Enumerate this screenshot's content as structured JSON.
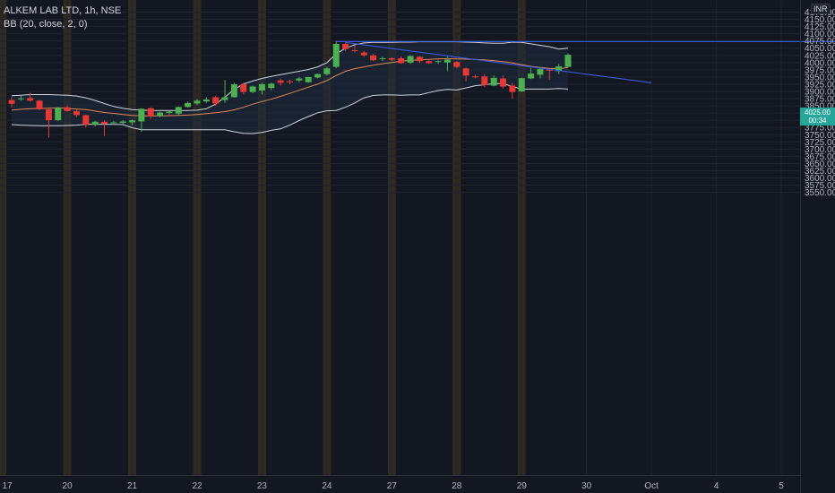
{
  "legend": {
    "symbol_line": "ALKEM LAB LTD, 1h, NSE",
    "indicator_line": "BB (20, close, 2, 0)"
  },
  "currency": "INR",
  "last_price_tag": {
    "price": "4025.00",
    "time": "00:34"
  },
  "colors": {
    "background": "#131722",
    "grid": "#1f2330",
    "up": "#4caf50",
    "down": "#e53935",
    "bb_band": "#cfd3dc",
    "bb_basis": "#e0895a",
    "bb_fill": "#1d2c3e",
    "trendline": "#3d5ad8",
    "session_highlight": "#3a3120",
    "axis_text": "#b2b5be"
  },
  "chart_data": {
    "type": "candlestick",
    "title": "ALKEM LAB LTD, 1h, NSE",
    "ylim": [
      3535,
      4200
    ],
    "y_ticks": [
      3550,
      3575,
      3600,
      3625,
      3650,
      3675,
      3700,
      3725,
      3750,
      3775,
      3800,
      3825,
      3850,
      3875,
      3900,
      3925,
      3950,
      3975,
      4000,
      4025,
      4050,
      4075,
      4100,
      4125,
      4150,
      4175
    ],
    "x_ticks": [
      {
        "label": "17",
        "index": -1
      },
      {
        "label": "20",
        "index": 6
      },
      {
        "label": "21",
        "index": 13
      },
      {
        "label": "22",
        "index": 20
      },
      {
        "label": "23",
        "index": 27
      },
      {
        "label": "24",
        "index": 34
      },
      {
        "label": "27",
        "index": 41
      },
      {
        "label": "28",
        "index": 48
      },
      {
        "label": "29",
        "index": 55
      },
      {
        "label": "30",
        "index": 62
      },
      {
        "label": "Oct",
        "index": 69
      },
      {
        "label": "4",
        "index": 76
      },
      {
        "label": "5",
        "index": 83
      }
    ],
    "candles": [
      [
        3870,
        3880,
        3845,
        3857
      ],
      [
        3873,
        3885,
        3868,
        3876
      ],
      [
        3877,
        3895,
        3865,
        3868
      ],
      [
        3868,
        3870,
        3835,
        3838
      ],
      [
        3838,
        3840,
        3740,
        3800
      ],
      [
        3800,
        3845,
        3798,
        3843
      ],
      [
        3845,
        3852,
        3830,
        3832
      ],
      [
        3832,
        3838,
        3810,
        3818
      ],
      [
        3818,
        3820,
        3775,
        3785
      ],
      [
        3785,
        3798,
        3778,
        3795
      ],
      [
        3795,
        3800,
        3745,
        3788
      ],
      [
        3790,
        3798,
        3785,
        3793
      ],
      [
        3791,
        3800,
        3782,
        3796
      ],
      [
        3793,
        3803,
        3782,
        3800
      ],
      [
        3796,
        3842,
        3760,
        3840
      ],
      [
        3842,
        3845,
        3805,
        3815
      ],
      [
        3815,
        3830,
        3810,
        3827
      ],
      [
        3825,
        3832,
        3820,
        3830
      ],
      [
        3823,
        3848,
        3816,
        3846
      ],
      [
        3846,
        3865,
        3844,
        3860
      ],
      [
        3858,
        3874,
        3852,
        3868
      ],
      [
        3865,
        3880,
        3860,
        3872
      ],
      [
        3880,
        3885,
        3850,
        3858
      ],
      [
        3870,
        3940,
        3860,
        3880
      ],
      [
        3880,
        3930,
        3878,
        3925
      ],
      [
        3925,
        3930,
        3890,
        3898
      ],
      [
        3898,
        3920,
        3894,
        3917
      ],
      [
        3903,
        3930,
        3890,
        3925
      ],
      [
        3912,
        3930,
        3905,
        3927
      ],
      [
        3938,
        3945,
        3920,
        3930
      ],
      [
        3935,
        3940,
        3925,
        3932
      ],
      [
        3938,
        3950,
        3932,
        3945
      ],
      [
        3932,
        3950,
        3930,
        3950
      ],
      [
        3948,
        3962,
        3945,
        3960
      ],
      [
        3960,
        3985,
        3955,
        3980
      ],
      [
        3985,
        4075,
        3980,
        4065
      ],
      [
        4065,
        4070,
        4040,
        4047
      ],
      [
        4043,
        4060,
        4035,
        4040
      ],
      [
        4035,
        4040,
        4020,
        4025
      ],
      [
        4025,
        4030,
        4005,
        4008
      ],
      [
        4013,
        4020,
        4005,
        4015
      ],
      [
        4015,
        4018,
        4005,
        4010
      ],
      [
        4015,
        4022,
        3995,
        3998
      ],
      [
        4000,
        4025,
        3995,
        4023
      ],
      [
        4020,
        4022,
        3998,
        4005
      ],
      [
        4005,
        4010,
        3995,
        3998
      ],
      [
        4002,
        4010,
        3995,
        4005
      ],
      [
        4000,
        4020,
        3970,
        4010
      ],
      [
        4002,
        4005,
        3980,
        3985
      ],
      [
        3980,
        3983,
        3935,
        3955
      ],
      [
        3952,
        3958,
        3945,
        3950
      ],
      [
        3952,
        3960,
        3915,
        3922
      ],
      [
        3920,
        3955,
        3918,
        3947
      ],
      [
        3945,
        3955,
        3910,
        3917
      ],
      [
        3920,
        3930,
        3875,
        3898
      ],
      [
        3900,
        3948,
        3898,
        3946
      ],
      [
        3945,
        3982,
        3943,
        3962
      ],
      [
        3958,
        3985,
        3945,
        3978
      ],
      [
        3975,
        3978,
        3940,
        3972
      ],
      [
        3970,
        3995,
        3960,
        3987
      ],
      [
        3985,
        4032,
        3983,
        4027
      ]
    ],
    "bollinger": {
      "upper": [
        3885,
        3887,
        3889,
        3889,
        3889,
        3888,
        3887,
        3884,
        3878,
        3869,
        3858,
        3848,
        3842,
        3837,
        3835,
        3834,
        3834,
        3834,
        3834,
        3834,
        3835,
        3840,
        3856,
        3880,
        3907,
        3926,
        3936,
        3945,
        3952,
        3958,
        3964,
        3970,
        3976,
        3985,
        4000,
        4030,
        4050,
        4062,
        4068,
        4070,
        4070,
        4070,
        4071,
        4071,
        4072,
        4072,
        4072,
        4072,
        4072,
        4071,
        4070,
        4068,
        4067,
        4067,
        4071,
        4070,
        4065,
        4060,
        4055,
        4047,
        4050
      ],
      "basis": [
        3835,
        3838,
        3840,
        3841,
        3842,
        3843,
        3841,
        3839,
        3837,
        3832,
        3827,
        3824,
        3820,
        3817,
        3815,
        3815,
        3815,
        3816,
        3817,
        3818,
        3820,
        3823,
        3826,
        3830,
        3836,
        3845,
        3856,
        3865,
        3873,
        3883,
        3893,
        3904,
        3915,
        3925,
        3938,
        3955,
        3970,
        3979,
        3985,
        3991,
        3996,
        4000,
        4005,
        4008,
        4010,
        4011,
        4013,
        4013,
        4013,
        4012,
        4011,
        4009,
        4007,
        4003,
        3999,
        3993,
        3987,
        3983,
        3980,
        3978,
        3983
      ],
      "lower": [
        3785,
        3783,
        3782,
        3781,
        3781,
        3781,
        3782,
        3783,
        3786,
        3786,
        3786,
        3786,
        3785,
        3774,
        3767,
        3767,
        3767,
        3767,
        3767,
        3767,
        3767,
        3767,
        3767,
        3767,
        3760,
        3755,
        3754,
        3758,
        3765,
        3770,
        3783,
        3799,
        3813,
        3826,
        3833,
        3834,
        3845,
        3860,
        3878,
        3886,
        3888,
        3888,
        3887,
        3888,
        3888,
        3896,
        3903,
        3907,
        3905,
        3912,
        3920,
        3923,
        3927,
        3927,
        3917,
        3908,
        3908,
        3908,
        3908,
        3910,
        3908
      ]
    },
    "trendlines": [
      {
        "name": "resistance",
        "from": {
          "index": 35,
          "price": 4073
        },
        "to": {
          "index": 103,
          "price": 4073
        }
      },
      {
        "name": "descending",
        "from": {
          "index": 36,
          "price": 4070
        },
        "to": {
          "index": 69,
          "price": 3930
        }
      }
    ],
    "session_highlights": [
      -1,
      6,
      13,
      20,
      27,
      34,
      41,
      48,
      55
    ]
  }
}
